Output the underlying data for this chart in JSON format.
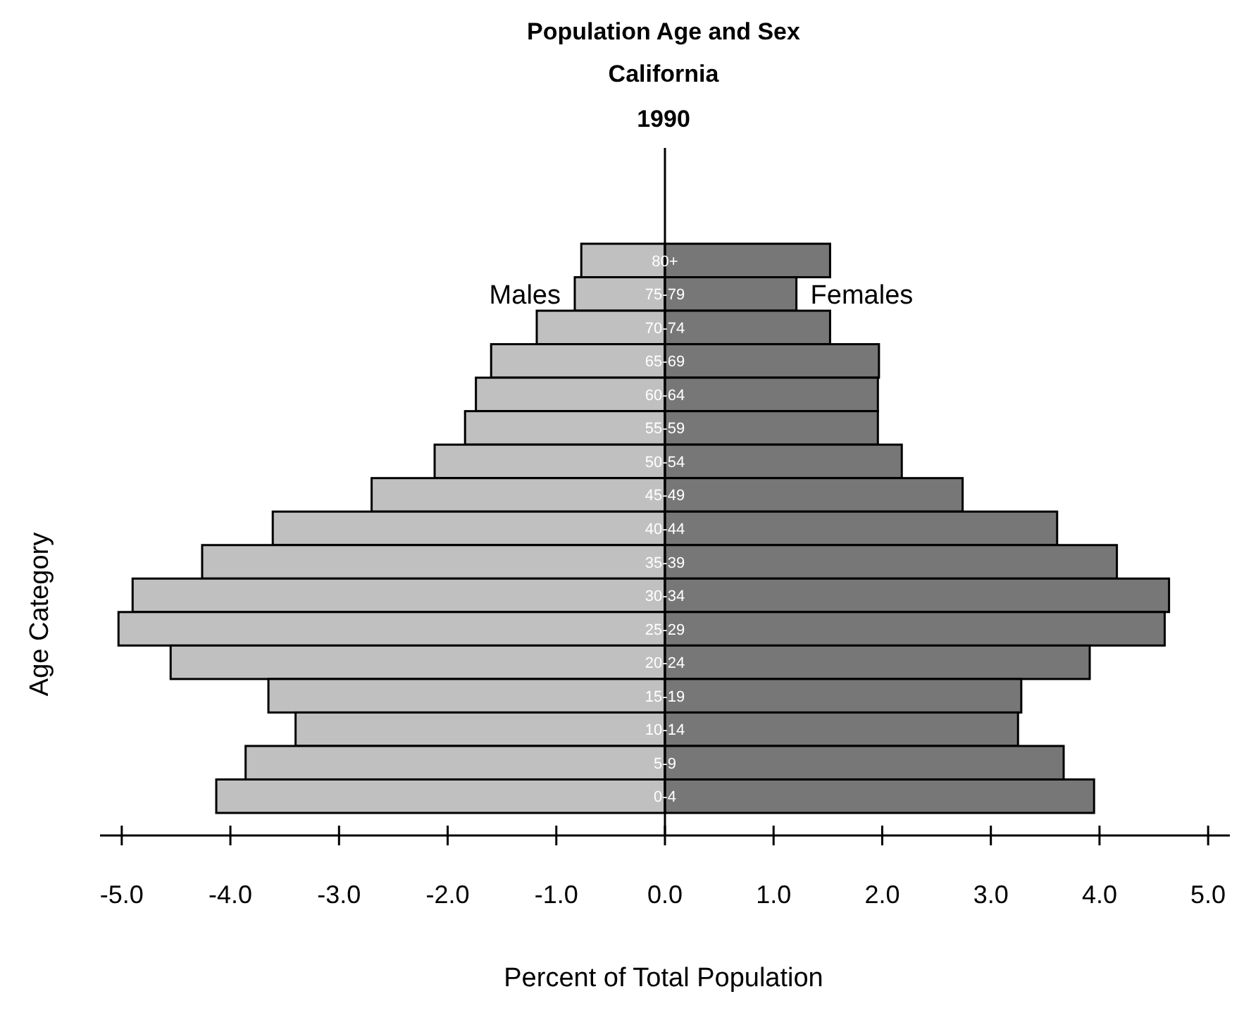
{
  "chart_data": {
    "type": "bar",
    "orientation": "horizontal",
    "title": "Population Age and Sex",
    "subtitle": "California",
    "annotations": [
      "1990"
    ],
    "xlabel": "Percent of Total Population",
    "ylabel": "Age Category",
    "categories": [
      "80+",
      "75-79",
      "70-74",
      "65-69",
      "60-64",
      "55-59",
      "50-54",
      "45-49",
      "40-44",
      "35-39",
      "30-34",
      "25-29",
      "20-24",
      "15-19",
      "10-14",
      "5-9",
      "0-4"
    ],
    "series": [
      {
        "name": "Males",
        "color": "#c0c0c0",
        "values": [
          -0.77,
          -0.83,
          -1.18,
          -1.6,
          -1.74,
          -1.84,
          -2.12,
          -2.7,
          -3.61,
          -4.26,
          -4.9,
          -5.03,
          -4.55,
          -3.65,
          -3.4,
          -3.86,
          -4.13
        ]
      },
      {
        "name": "Females",
        "color": "#777777",
        "values": [
          1.52,
          1.21,
          1.52,
          1.97,
          1.96,
          1.96,
          2.18,
          2.74,
          3.61,
          4.16,
          4.64,
          4.6,
          3.91,
          3.28,
          3.25,
          3.67,
          3.95
        ]
      }
    ],
    "xlim": [
      -5.2,
      5.2
    ],
    "xticks": [
      {
        "value": -5,
        "label": "-5.0"
      },
      {
        "value": -4,
        "label": "-4.0"
      },
      {
        "value": -3,
        "label": "-3.0"
      },
      {
        "value": -2,
        "label": "-2.0"
      },
      {
        "value": -1,
        "label": "-1.0"
      },
      {
        "value": 0,
        "label": "0.0"
      },
      {
        "value": 1,
        "label": "1.0"
      },
      {
        "value": 2,
        "label": "2.0"
      },
      {
        "value": 3,
        "label": "3.0"
      },
      {
        "value": 4,
        "label": "4.0"
      },
      {
        "value": 5,
        "label": "5.0"
      }
    ],
    "grid": false,
    "stacked": true
  }
}
